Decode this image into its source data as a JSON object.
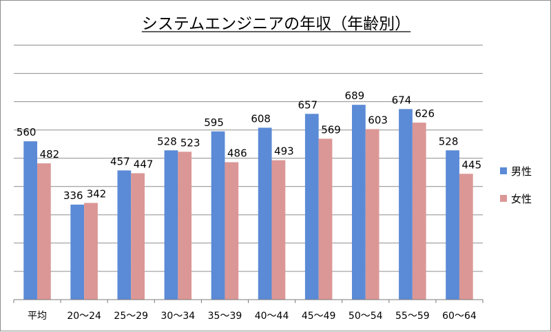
{
  "chart_data": {
    "type": "bar",
    "title": "システムエンジニアの年収（年齢別）",
    "xlabel": "",
    "ylabel": "",
    "categories": [
      "平均",
      "20～24",
      "25～29",
      "30～34",
      "35～39",
      "40～44",
      "45～49",
      "50～54",
      "55～59",
      "60～64"
    ],
    "series": [
      {
        "name": "男性",
        "color": "#5b8ad6",
        "values": [
          560,
          336,
          457,
          528,
          595,
          608,
          657,
          689,
          674,
          528
        ]
      },
      {
        "name": "女性",
        "color": "#db9796",
        "values": [
          482,
          342,
          447,
          523,
          486,
          493,
          569,
          603,
          626,
          445
        ]
      }
    ],
    "ylim": [
      0,
      900
    ],
    "y_gridline_step": 100,
    "y_tick_labels_shown": false,
    "grid": true,
    "legend_position": "right"
  }
}
